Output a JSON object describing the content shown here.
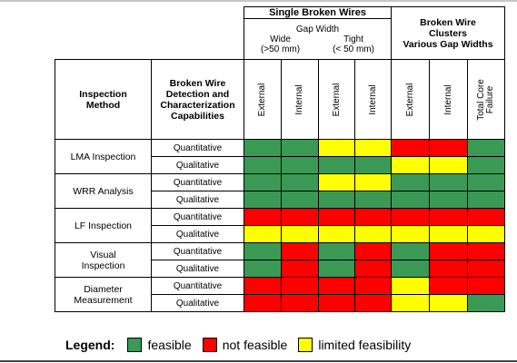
{
  "colors": {
    "feasible": "#3a9a55",
    "not_feasible": "#ff0000",
    "limited": "#ffff00"
  },
  "header": {
    "method_label": "Inspection Method",
    "capabilities_label": "Broken Wire Detection and Characterization Capabilities",
    "single_group": "Single Broken Wires",
    "gap_width": "Gap Width",
    "wide": "Wide",
    "wide_range": "(>50 mm)",
    "tight": "Tight",
    "tight_range": "(< 50 mm)",
    "clusters_line1": "Broken Wire",
    "clusters_line2": "Clusters",
    "clusters_line3": "Various Gap Widths",
    "columns": [
      "External",
      "Internal",
      "External",
      "Internal",
      "External",
      "Internal",
      "Total Core Failure"
    ]
  },
  "methods": [
    {
      "name": "LMA Inspection",
      "rows": [
        {
          "level": "Quantitative",
          "cells": [
            "feasible",
            "feasible",
            "limited",
            "limited",
            "not",
            "not",
            "feasible"
          ]
        },
        {
          "level": "Qualitative",
          "cells": [
            "feasible",
            "feasible",
            "feasible",
            "feasible",
            "limited",
            "limited",
            "feasible"
          ]
        }
      ]
    },
    {
      "name": "WRR Analysis",
      "rows": [
        {
          "level": "Quantitative",
          "cells": [
            "feasible",
            "feasible",
            "limited",
            "limited",
            "feasible",
            "feasible",
            "feasible"
          ]
        },
        {
          "level": "Qualitative",
          "cells": [
            "feasible",
            "feasible",
            "feasible",
            "feasible",
            "feasible",
            "feasible",
            "feasible"
          ]
        }
      ]
    },
    {
      "name": "LF Inspection",
      "rows": [
        {
          "level": "Quantitative",
          "cells": [
            "not",
            "not",
            "not",
            "not",
            "not",
            "not",
            "not"
          ]
        },
        {
          "level": "Qualitative",
          "cells": [
            "limited",
            "limited",
            "limited",
            "limited",
            "limited",
            "limited",
            "limited"
          ]
        }
      ]
    },
    {
      "name": "Visual Inspection",
      "rows": [
        {
          "level": "Quantitative",
          "cells": [
            "feasible",
            "not",
            "feasible",
            "not",
            "feasible",
            "not",
            "not"
          ]
        },
        {
          "level": "Qualitative",
          "cells": [
            "feasible",
            "not",
            "feasible",
            "not",
            "feasible",
            "not",
            "not"
          ]
        }
      ]
    },
    {
      "name": "Diameter Measurement",
      "rows": [
        {
          "level": "Quantitative",
          "cells": [
            "not",
            "not",
            "not",
            "not",
            "limited",
            "not",
            "not"
          ]
        },
        {
          "level": "Qualitative",
          "cells": [
            "not",
            "not",
            "not",
            "not",
            "limited",
            "limited",
            "feasible"
          ]
        }
      ]
    }
  ],
  "legend": {
    "title": "Legend:",
    "items": [
      {
        "label": "feasible",
        "type": "feasible"
      },
      {
        "label": "not feasible",
        "type": "not"
      },
      {
        "label": "limited feasibility",
        "type": "limited"
      }
    ]
  }
}
